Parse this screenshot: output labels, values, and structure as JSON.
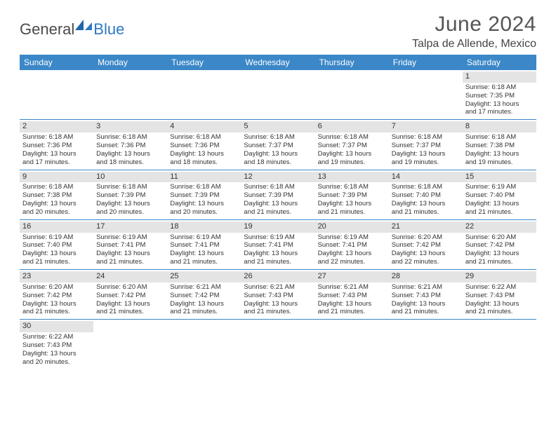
{
  "brand": {
    "part1": "General",
    "part2": "Blue"
  },
  "title": "June 2024",
  "location": "Talpa de Allende, Mexico",
  "colors": {
    "header_blue": "#3b87c8",
    "daynum_gray": "#e4e4e4",
    "divider_blue": "#3b87c8"
  },
  "daysOfWeek": [
    "Sunday",
    "Monday",
    "Tuesday",
    "Wednesday",
    "Thursday",
    "Friday",
    "Saturday"
  ],
  "weeks": [
    [
      {
        "empty": true
      },
      {
        "empty": true
      },
      {
        "empty": true
      },
      {
        "empty": true
      },
      {
        "empty": true
      },
      {
        "empty": true
      },
      {
        "n": "1",
        "sr": "Sunrise: 6:18 AM",
        "ss": "Sunset: 7:35 PM",
        "d1": "Daylight: 13 hours",
        "d2": "and 17 minutes."
      }
    ],
    [
      {
        "n": "2",
        "sr": "Sunrise: 6:18 AM",
        "ss": "Sunset: 7:36 PM",
        "d1": "Daylight: 13 hours",
        "d2": "and 17 minutes."
      },
      {
        "n": "3",
        "sr": "Sunrise: 6:18 AM",
        "ss": "Sunset: 7:36 PM",
        "d1": "Daylight: 13 hours",
        "d2": "and 18 minutes."
      },
      {
        "n": "4",
        "sr": "Sunrise: 6:18 AM",
        "ss": "Sunset: 7:36 PM",
        "d1": "Daylight: 13 hours",
        "d2": "and 18 minutes."
      },
      {
        "n": "5",
        "sr": "Sunrise: 6:18 AM",
        "ss": "Sunset: 7:37 PM",
        "d1": "Daylight: 13 hours",
        "d2": "and 18 minutes."
      },
      {
        "n": "6",
        "sr": "Sunrise: 6:18 AM",
        "ss": "Sunset: 7:37 PM",
        "d1": "Daylight: 13 hours",
        "d2": "and 19 minutes."
      },
      {
        "n": "7",
        "sr": "Sunrise: 6:18 AM",
        "ss": "Sunset: 7:37 PM",
        "d1": "Daylight: 13 hours",
        "d2": "and 19 minutes."
      },
      {
        "n": "8",
        "sr": "Sunrise: 6:18 AM",
        "ss": "Sunset: 7:38 PM",
        "d1": "Daylight: 13 hours",
        "d2": "and 19 minutes."
      }
    ],
    [
      {
        "n": "9",
        "sr": "Sunrise: 6:18 AM",
        "ss": "Sunset: 7:38 PM",
        "d1": "Daylight: 13 hours",
        "d2": "and 20 minutes."
      },
      {
        "n": "10",
        "sr": "Sunrise: 6:18 AM",
        "ss": "Sunset: 7:39 PM",
        "d1": "Daylight: 13 hours",
        "d2": "and 20 minutes."
      },
      {
        "n": "11",
        "sr": "Sunrise: 6:18 AM",
        "ss": "Sunset: 7:39 PM",
        "d1": "Daylight: 13 hours",
        "d2": "and 20 minutes."
      },
      {
        "n": "12",
        "sr": "Sunrise: 6:18 AM",
        "ss": "Sunset: 7:39 PM",
        "d1": "Daylight: 13 hours",
        "d2": "and 21 minutes."
      },
      {
        "n": "13",
        "sr": "Sunrise: 6:18 AM",
        "ss": "Sunset: 7:39 PM",
        "d1": "Daylight: 13 hours",
        "d2": "and 21 minutes."
      },
      {
        "n": "14",
        "sr": "Sunrise: 6:18 AM",
        "ss": "Sunset: 7:40 PM",
        "d1": "Daylight: 13 hours",
        "d2": "and 21 minutes."
      },
      {
        "n": "15",
        "sr": "Sunrise: 6:19 AM",
        "ss": "Sunset: 7:40 PM",
        "d1": "Daylight: 13 hours",
        "d2": "and 21 minutes."
      }
    ],
    [
      {
        "n": "16",
        "sr": "Sunrise: 6:19 AM",
        "ss": "Sunset: 7:40 PM",
        "d1": "Daylight: 13 hours",
        "d2": "and 21 minutes."
      },
      {
        "n": "17",
        "sr": "Sunrise: 6:19 AM",
        "ss": "Sunset: 7:41 PM",
        "d1": "Daylight: 13 hours",
        "d2": "and 21 minutes."
      },
      {
        "n": "18",
        "sr": "Sunrise: 6:19 AM",
        "ss": "Sunset: 7:41 PM",
        "d1": "Daylight: 13 hours",
        "d2": "and 21 minutes."
      },
      {
        "n": "19",
        "sr": "Sunrise: 6:19 AM",
        "ss": "Sunset: 7:41 PM",
        "d1": "Daylight: 13 hours",
        "d2": "and 21 minutes."
      },
      {
        "n": "20",
        "sr": "Sunrise: 6:19 AM",
        "ss": "Sunset: 7:41 PM",
        "d1": "Daylight: 13 hours",
        "d2": "and 22 minutes."
      },
      {
        "n": "21",
        "sr": "Sunrise: 6:20 AM",
        "ss": "Sunset: 7:42 PM",
        "d1": "Daylight: 13 hours",
        "d2": "and 22 minutes."
      },
      {
        "n": "22",
        "sr": "Sunrise: 6:20 AM",
        "ss": "Sunset: 7:42 PM",
        "d1": "Daylight: 13 hours",
        "d2": "and 21 minutes."
      }
    ],
    [
      {
        "n": "23",
        "sr": "Sunrise: 6:20 AM",
        "ss": "Sunset: 7:42 PM",
        "d1": "Daylight: 13 hours",
        "d2": "and 21 minutes."
      },
      {
        "n": "24",
        "sr": "Sunrise: 6:20 AM",
        "ss": "Sunset: 7:42 PM",
        "d1": "Daylight: 13 hours",
        "d2": "and 21 minutes."
      },
      {
        "n": "25",
        "sr": "Sunrise: 6:21 AM",
        "ss": "Sunset: 7:42 PM",
        "d1": "Daylight: 13 hours",
        "d2": "and 21 minutes."
      },
      {
        "n": "26",
        "sr": "Sunrise: 6:21 AM",
        "ss": "Sunset: 7:43 PM",
        "d1": "Daylight: 13 hours",
        "d2": "and 21 minutes."
      },
      {
        "n": "27",
        "sr": "Sunrise: 6:21 AM",
        "ss": "Sunset: 7:43 PM",
        "d1": "Daylight: 13 hours",
        "d2": "and 21 minutes."
      },
      {
        "n": "28",
        "sr": "Sunrise: 6:21 AM",
        "ss": "Sunset: 7:43 PM",
        "d1": "Daylight: 13 hours",
        "d2": "and 21 minutes."
      },
      {
        "n": "29",
        "sr": "Sunrise: 6:22 AM",
        "ss": "Sunset: 7:43 PM",
        "d1": "Daylight: 13 hours",
        "d2": "and 21 minutes."
      }
    ],
    [
      {
        "n": "30",
        "sr": "Sunrise: 6:22 AM",
        "ss": "Sunset: 7:43 PM",
        "d1": "Daylight: 13 hours",
        "d2": "and 20 minutes."
      },
      {
        "empty": true
      },
      {
        "empty": true
      },
      {
        "empty": true
      },
      {
        "empty": true
      },
      {
        "empty": true
      },
      {
        "empty": true
      }
    ]
  ]
}
